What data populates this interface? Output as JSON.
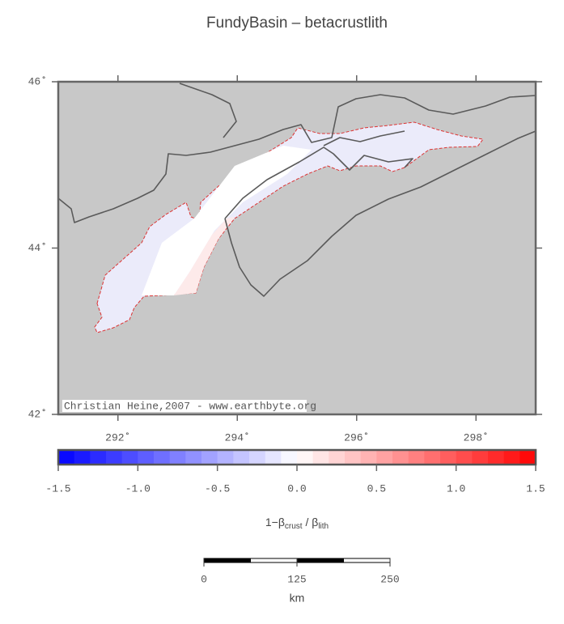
{
  "title": "FundyBasin – betacrustlith",
  "map": {
    "credit": "Christian Heine,2007 - www.earthbyte.org",
    "background": "#c8c8c8",
    "xlim": [
      291,
      299
    ],
    "ylim": [
      42,
      46
    ],
    "xticks": [
      {
        "value": 292,
        "label": "292˚"
      },
      {
        "value": 294,
        "label": "294˚"
      },
      {
        "value": 296,
        "label": "296˚"
      },
      {
        "value": 298,
        "label": "298˚"
      }
    ],
    "yticks": [
      {
        "value": 42,
        "label": "42˚"
      },
      {
        "value": 44,
        "label": "44˚"
      },
      {
        "value": 46,
        "label": "46˚"
      }
    ]
  },
  "colorbar": {
    "range": [
      -1.5,
      1.5
    ],
    "colors": [
      "#0000ff",
      "#ffffff",
      "#ff0000"
    ],
    "ticks": [
      {
        "value": -1.5,
        "label": "-1.5"
      },
      {
        "value": -1.0,
        "label": "-1.0"
      },
      {
        "value": -0.5,
        "label": "-0.5"
      },
      {
        "value": 0,
        "label": "0.0"
      },
      {
        "value": 0.5,
        "label": "0.5"
      },
      {
        "value": 1.0,
        "label": "1.0"
      },
      {
        "value": 1.5,
        "label": "1.5"
      }
    ],
    "label": {
      "main": "1−β",
      "sub1": "crust",
      "mid": " / β",
      "sub2": "lith"
    }
  },
  "scalebar": {
    "ticks": [
      0,
      125,
      250
    ],
    "unit": "km"
  }
}
